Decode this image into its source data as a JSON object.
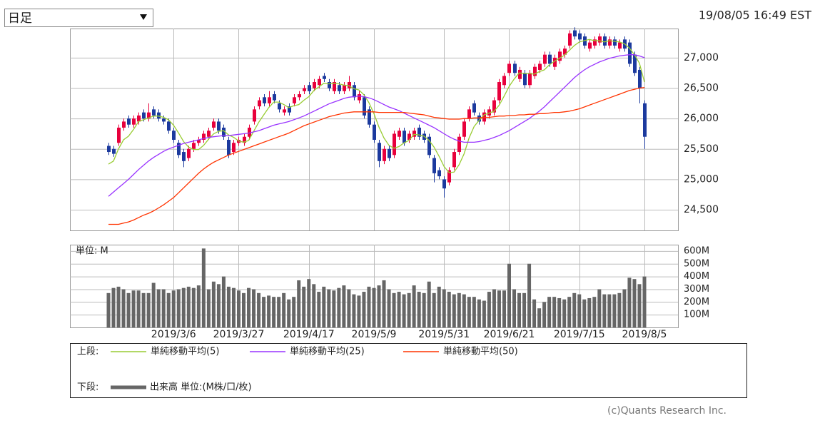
{
  "header": {
    "period_select": "日足",
    "timestamp": "19/08/05 16:49 EST"
  },
  "chart_data": [
    {
      "type": "candlestick",
      "up_color": "#e8003c",
      "down_color": "#1c3a9e",
      "grid": true,
      "ylim": [
        24160,
        27480
      ],
      "yticks": [
        {
          "value": 24500,
          "label": "24,500"
        },
        {
          "value": 25000,
          "label": "25,000"
        },
        {
          "value": 25500,
          "label": "25,500"
        },
        {
          "value": 26000,
          "label": "26,000"
        },
        {
          "value": 26500,
          "label": "26,500"
        },
        {
          "value": 27000,
          "label": "27,000"
        }
      ],
      "open": [
        25550,
        25500,
        25600,
        25850,
        26000,
        25900,
        25950,
        26100,
        26000,
        26150,
        26100,
        26000,
        25950,
        25800,
        25600,
        25450,
        25350,
        25500,
        25600,
        25650,
        25700,
        25850,
        25950,
        25850,
        25650,
        25450,
        25600,
        25600,
        25700,
        25950,
        26200,
        26350,
        26250,
        26400,
        26250,
        26100,
        26200,
        26250,
        26350,
        26450,
        26550,
        26500,
        26550,
        26700,
        26600,
        26450,
        26550,
        26450,
        26500,
        26550,
        26300,
        26350,
        26150,
        25900,
        25600,
        25300,
        25500,
        25400,
        25700,
        25800,
        25650,
        25700,
        25850,
        25750,
        25700,
        25350,
        25150,
        25000,
        24950,
        25200,
        25450,
        25700,
        26000,
        26250,
        26050,
        25950,
        26050,
        26100,
        26300,
        26550,
        26750,
        26900,
        26650,
        26750,
        26550,
        26700,
        26800,
        26900,
        27050,
        26850,
        26950,
        27050,
        27200,
        27450,
        27400,
        27350,
        27150,
        27200,
        27250,
        27350,
        27200,
        27300,
        27150,
        27300,
        27250,
        27050,
        26800,
        26250
      ],
      "high": [
        25600,
        25550,
        25900,
        26000,
        26050,
        26050,
        26100,
        26150,
        26250,
        26200,
        26150,
        26050,
        26000,
        25850,
        25650,
        25500,
        25550,
        25650,
        25700,
        25800,
        25850,
        26000,
        26000,
        25900,
        25700,
        25650,
        25700,
        25750,
        25900,
        26200,
        26350,
        26400,
        26450,
        26450,
        26300,
        26200,
        26250,
        26400,
        26450,
        26550,
        26600,
        26650,
        26700,
        26750,
        26650,
        26650,
        26600,
        26600,
        26700,
        26600,
        26450,
        26400,
        26200,
        25950,
        25650,
        25550,
        25550,
        25800,
        25850,
        25850,
        25800,
        25850,
        25900,
        25800,
        25750,
        25400,
        25200,
        25050,
        25200,
        25500,
        25750,
        26000,
        26200,
        26300,
        26100,
        26150,
        26200,
        26350,
        26650,
        26750,
        26950,
        26950,
        26850,
        26800,
        26800,
        26900,
        26950,
        27100,
        27100,
        27050,
        27150,
        27200,
        27450,
        27500,
        27450,
        27400,
        27300,
        27350,
        27400,
        27400,
        27350,
        27350,
        27300,
        27350,
        27300,
        27100,
        26850,
        26300
      ],
      "low": [
        25400,
        25370,
        25550,
        25800,
        25850,
        25850,
        25900,
        25950,
        25950,
        26000,
        25950,
        25900,
        25750,
        25600,
        25350,
        25200,
        25300,
        25450,
        25550,
        25600,
        25650,
        25800,
        25750,
        25650,
        25350,
        25400,
        25550,
        25550,
        25650,
        25900,
        26150,
        26200,
        26200,
        26250,
        26100,
        26050,
        26050,
        26200,
        26300,
        26400,
        26400,
        26450,
        26500,
        26600,
        26450,
        26400,
        26400,
        26400,
        26450,
        26300,
        26250,
        26000,
        25850,
        25600,
        25200,
        25250,
        25300,
        25350,
        25650,
        25550,
        25600,
        25650,
        25650,
        25600,
        25350,
        24950,
        25000,
        24700,
        24900,
        25150,
        25400,
        25650,
        25950,
        26050,
        25900,
        25900,
        26000,
        26050,
        26250,
        26500,
        26700,
        26700,
        26600,
        26500,
        26500,
        26650,
        26750,
        26850,
        26850,
        26800,
        26900,
        27000,
        27150,
        27300,
        27250,
        27150,
        27100,
        27150,
        27200,
        27150,
        27150,
        27150,
        27100,
        27100,
        26850,
        26700,
        26250,
        25500
      ],
      "close": [
        25450,
        25420,
        25850,
        25950,
        25900,
        26000,
        26050,
        26000,
        26100,
        26050,
        26000,
        25950,
        25800,
        25650,
        25400,
        25300,
        25500,
        25600,
        25650,
        25750,
        25800,
        25950,
        25800,
        25700,
        25400,
        25600,
        25650,
        25700,
        25850,
        26150,
        26300,
        26250,
        26350,
        26300,
        26150,
        26150,
        26100,
        26350,
        26400,
        26500,
        26450,
        26600,
        26650,
        26650,
        26500,
        26600,
        26450,
        26550,
        26600,
        26350,
        26400,
        26050,
        25900,
        25650,
        25300,
        25500,
        25350,
        25750,
        25800,
        25600,
        25750,
        25800,
        25700,
        25650,
        25400,
        25100,
        25050,
        24850,
        25150,
        25450,
        25700,
        25950,
        26150,
        26100,
        25950,
        26100,
        26150,
        26300,
        26600,
        26700,
        26900,
        26750,
        26800,
        26550,
        26750,
        26850,
        26900,
        27050,
        26900,
        27000,
        27100,
        27150,
        27400,
        27350,
        27300,
        27200,
        27250,
        27300,
        27350,
        27200,
        27300,
        27200,
        27250,
        27150,
        26900,
        26750,
        26500,
        25700
      ],
      "series": [
        {
          "name": "単純移動平均(5)",
          "color": "#99cc33",
          "values": [
            25250,
            25300,
            25500,
            25650,
            25710,
            25820,
            25950,
            25980,
            26010,
            26040,
            26040,
            26020,
            25980,
            25890,
            25760,
            25620,
            25530,
            25490,
            25490,
            25560,
            25660,
            25750,
            25790,
            25800,
            25730,
            25690,
            25630,
            25610,
            25640,
            25790,
            25940,
            26060,
            26180,
            26270,
            26270,
            26230,
            26180,
            26210,
            26230,
            26300,
            26360,
            26460,
            26520,
            26580,
            26570,
            26580,
            26570,
            26550,
            26540,
            26490,
            26470,
            26390,
            26260,
            26080,
            25860,
            25680,
            25560,
            25510,
            25540,
            25600,
            25640,
            25740,
            25730,
            25710,
            25640,
            25530,
            25380,
            25210,
            25110,
            25120,
            25240,
            25420,
            25680,
            25870,
            25970,
            26060,
            26090,
            26120,
            26220,
            26370,
            26530,
            26650,
            26750,
            26740,
            26740,
            26730,
            26770,
            26800,
            26880,
            26940,
            26990,
            27040,
            27120,
            27200,
            27260,
            27280,
            27300,
            27280,
            27280,
            27260,
            27280,
            27270,
            27260,
            27230,
            27160,
            27050,
            26910,
            26600
          ]
        },
        {
          "name": "単純移動平均(25)",
          "color": "#9933ff",
          "values": [
            24720,
            24790,
            24860,
            24930,
            25000,
            25080,
            25160,
            25230,
            25300,
            25360,
            25410,
            25460,
            25500,
            25530,
            25560,
            25590,
            25610,
            25630,
            25650,
            25670,
            25690,
            25700,
            25710,
            25720,
            25720,
            25730,
            25740,
            25750,
            25760,
            25780,
            25800,
            25830,
            25860,
            25890,
            25910,
            25930,
            25950,
            25980,
            26010,
            26040,
            26080,
            26120,
            26160,
            26200,
            26240,
            26270,
            26300,
            26330,
            26350,
            26360,
            26370,
            26360,
            26340,
            26310,
            26270,
            26230,
            26190,
            26160,
            26130,
            26090,
            26050,
            26010,
            25970,
            25930,
            25890,
            25850,
            25800,
            25750,
            25700,
            25660,
            25630,
            25610,
            25610,
            25610,
            25620,
            25640,
            25660,
            25690,
            25720,
            25760,
            25800,
            25850,
            25900,
            25950,
            26000,
            26060,
            26120,
            26190,
            26270,
            26350,
            26430,
            26510,
            26590,
            26670,
            26740,
            26800,
            26850,
            26890,
            26930,
            26960,
            26990,
            27010,
            27030,
            27040,
            27050,
            27050,
            27030,
            27000
          ]
        },
        {
          "name": "単純移動平均(50)",
          "color": "#ff3300",
          "values": [
            24260,
            24260,
            24260,
            24280,
            24300,
            24330,
            24370,
            24410,
            24440,
            24480,
            24530,
            24580,
            24640,
            24700,
            24780,
            24860,
            24940,
            25020,
            25100,
            25170,
            25230,
            25280,
            25320,
            25360,
            25400,
            25430,
            25460,
            25490,
            25520,
            25550,
            25580,
            25610,
            25640,
            25670,
            25700,
            25730,
            25760,
            25800,
            25840,
            25880,
            25910,
            25940,
            25970,
            26000,
            26030,
            26050,
            26070,
            26090,
            26100,
            26110,
            26110,
            26110,
            26110,
            26110,
            26100,
            26100,
            26100,
            26100,
            26100,
            26100,
            26090,
            26080,
            26070,
            26060,
            26040,
            26020,
            26010,
            26000,
            25990,
            25990,
            25990,
            26000,
            26000,
            26010,
            26010,
            26020,
            26020,
            26030,
            26040,
            26040,
            26050,
            26050,
            26060,
            26060,
            26070,
            26070,
            26080,
            26080,
            26090,
            26100,
            26100,
            26110,
            26120,
            26140,
            26160,
            26190,
            26220,
            26250,
            26280,
            26310,
            26340,
            26370,
            26400,
            26430,
            26460,
            26480,
            26500,
            26510
          ]
        }
      ]
    },
    {
      "type": "bar",
      "unit_label": "単位: M",
      "grid": true,
      "ylim": [
        0,
        650
      ],
      "yticks": [
        {
          "value": 100,
          "label": "100M"
        },
        {
          "value": 200,
          "label": "200M"
        },
        {
          "value": 300,
          "label": "300M"
        },
        {
          "value": 400,
          "label": "400M"
        },
        {
          "value": 500,
          "label": "500M"
        },
        {
          "value": 600,
          "label": "600M"
        }
      ],
      "categories": [
        null,
        null,
        null,
        null,
        null,
        null,
        null,
        null,
        null,
        null,
        null,
        null,
        null,
        "2019/3/6",
        null,
        null,
        null,
        null,
        null,
        null,
        null,
        null,
        null,
        null,
        null,
        null,
        "2019/3/27",
        null,
        null,
        null,
        null,
        null,
        null,
        null,
        null,
        null,
        null,
        null,
        null,
        null,
        "2019/4/17",
        null,
        null,
        null,
        null,
        null,
        null,
        null,
        null,
        null,
        null,
        null,
        null,
        "2019/5/9",
        null,
        null,
        null,
        null,
        null,
        null,
        null,
        null,
        null,
        null,
        null,
        null,
        null,
        "2019/5/31",
        null,
        null,
        null,
        null,
        null,
        null,
        null,
        null,
        null,
        null,
        null,
        null,
        "2019/6/21",
        null,
        null,
        null,
        null,
        null,
        null,
        null,
        null,
        null,
        null,
        null,
        null,
        null,
        "2019/7/15",
        null,
        null,
        null,
        null,
        null,
        null,
        null,
        null,
        null,
        null,
        null,
        null,
        "2019/8/5"
      ],
      "series": [
        {
          "name": "出来高 単位:(M株/口/枚)",
          "color": "#666666",
          "values": [
            270,
            310,
            320,
            300,
            270,
            290,
            290,
            270,
            270,
            350,
            300,
            300,
            270,
            290,
            300,
            310,
            320,
            310,
            330,
            620,
            300,
            360,
            340,
            400,
            320,
            310,
            290,
            270,
            310,
            300,
            270,
            240,
            250,
            240,
            240,
            270,
            220,
            240,
            370,
            320,
            380,
            340,
            280,
            320,
            300,
            290,
            310,
            330,
            300,
            260,
            250,
            280,
            320,
            310,
            330,
            370,
            300,
            270,
            280,
            260,
            270,
            330,
            280,
            270,
            360,
            270,
            320,
            300,
            280,
            260,
            270,
            260,
            240,
            240,
            220,
            210,
            280,
            300,
            290,
            290,
            500,
            300,
            270,
            270,
            500,
            220,
            150,
            200,
            240,
            240,
            230,
            220,
            240,
            270,
            260,
            220,
            230,
            240,
            300,
            260,
            260,
            260,
            270,
            300,
            390,
            380,
            340,
            400
          ]
        }
      ]
    }
  ],
  "legend": {
    "upper": "上段:",
    "lower": "下段:"
  },
  "footer": {
    "copyright": "(c)Quants Research Inc."
  }
}
